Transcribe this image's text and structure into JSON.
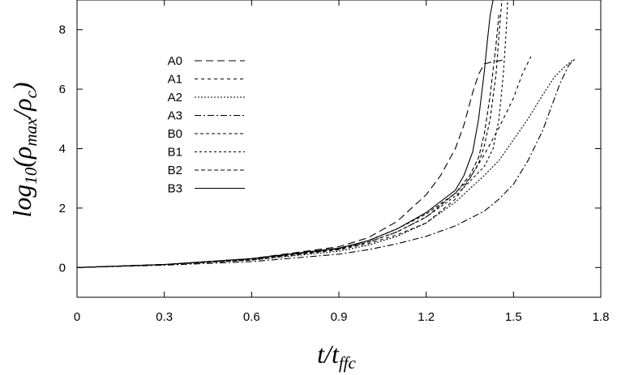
{
  "chart_data": {
    "type": "line",
    "title": "",
    "xlabel": "t/t_ffc",
    "ylabel": "log10(ρmax/ρc)",
    "xlabel_parts": {
      "main": "t/t",
      "sub": "ffc"
    },
    "ylabel_parts": {
      "pre": "log",
      "sub1": "10",
      "mid": "(ρ",
      "sub2": "max",
      "slash": "/ρ",
      "sub3": "c",
      "post": ")"
    },
    "xlim": [
      0,
      1.8
    ],
    "ylim": [
      -1,
      9
    ],
    "xticks": [
      0,
      0.3,
      0.6,
      0.9,
      1.2,
      1.5,
      1.8
    ],
    "xtick_labels": [
      "0",
      "0.3",
      "0.6",
      "0.9",
      "1.2",
      "1.5",
      "1.8"
    ],
    "yticks": [
      0,
      2,
      4,
      6,
      8
    ],
    "ytick_labels": [
      "0",
      "2",
      "4",
      "6",
      "8"
    ],
    "legend_position": "top-left",
    "grid": false,
    "series": [
      {
        "name": "A0",
        "dash": "9,5",
        "x": [
          0,
          0.3,
          0.6,
          0.9,
          1.0,
          1.1,
          1.2,
          1.25,
          1.3,
          1.33,
          1.36,
          1.38,
          1.4,
          1.42,
          1.45,
          1.47
        ],
        "y": [
          0,
          0.1,
          0.3,
          0.7,
          1.0,
          1.55,
          2.45,
          3.1,
          4.0,
          4.8,
          5.9,
          6.5,
          6.85,
          6.9,
          6.95,
          7.0
        ]
      },
      {
        "name": "A1",
        "dash": "4,4",
        "x": [
          0,
          0.3,
          0.6,
          0.9,
          1.0,
          1.1,
          1.2,
          1.3,
          1.35,
          1.4,
          1.45,
          1.5,
          1.53,
          1.56
        ],
        "y": [
          0,
          0.1,
          0.25,
          0.6,
          0.8,
          1.1,
          1.5,
          2.3,
          3.0,
          3.8,
          4.7,
          5.7,
          6.5,
          7.1
        ]
      },
      {
        "name": "A2",
        "dash": "2,2",
        "x": [
          0,
          0.3,
          0.6,
          0.9,
          1.0,
          1.1,
          1.2,
          1.3,
          1.4,
          1.45,
          1.5,
          1.55,
          1.6,
          1.64,
          1.67,
          1.7,
          1.71
        ],
        "y": [
          0,
          0.1,
          0.25,
          0.55,
          0.75,
          1.05,
          1.5,
          2.2,
          3.1,
          3.6,
          4.3,
          5.0,
          5.8,
          6.4,
          6.7,
          6.95,
          7.0
        ]
      },
      {
        "name": "A3",
        "dash": "8,3,2,3",
        "x": [
          0,
          0.3,
          0.6,
          0.9,
          1.0,
          1.1,
          1.2,
          1.3,
          1.4,
          1.45,
          1.5,
          1.55,
          1.6,
          1.63,
          1.66,
          1.69,
          1.71
        ],
        "y": [
          0,
          0.08,
          0.2,
          0.45,
          0.6,
          0.8,
          1.05,
          1.4,
          1.9,
          2.3,
          2.8,
          3.6,
          4.6,
          5.4,
          6.2,
          6.8,
          7.0
        ]
      },
      {
        "name": "B0",
        "dash": "4,3",
        "x": [
          0,
          0.3,
          0.6,
          0.9,
          1.0,
          1.1,
          1.2,
          1.3,
          1.35,
          1.38,
          1.4,
          1.42,
          1.44,
          1.45,
          1.46
        ],
        "y": [
          0,
          0.1,
          0.3,
          0.65,
          0.9,
          1.3,
          1.8,
          2.5,
          3.0,
          3.5,
          4.1,
          5.0,
          6.5,
          7.8,
          9.0
        ]
      },
      {
        "name": "B1",
        "dash": "3,3",
        "x": [
          0,
          0.3,
          0.6,
          0.9,
          1.0,
          1.1,
          1.2,
          1.3,
          1.35,
          1.4,
          1.43,
          1.45,
          1.465,
          1.475,
          1.48
        ],
        "y": [
          0,
          0.1,
          0.28,
          0.62,
          0.85,
          1.2,
          1.7,
          2.4,
          2.9,
          3.4,
          4.0,
          5.0,
          6.5,
          8.0,
          9.0
        ]
      },
      {
        "name": "B2",
        "dash": "5,3",
        "x": [
          0,
          0.3,
          0.6,
          0.9,
          1.0,
          1.1,
          1.2,
          1.3,
          1.35,
          1.38,
          1.4,
          1.42,
          1.44,
          1.45
        ],
        "y": [
          0,
          0.1,
          0.28,
          0.62,
          0.85,
          1.2,
          1.7,
          2.5,
          3.1,
          3.7,
          4.5,
          5.8,
          7.5,
          8.5
        ]
      },
      {
        "name": "B3",
        "dash": "",
        "x": [
          0,
          0.3,
          0.6,
          0.9,
          1.0,
          1.1,
          1.2,
          1.3,
          1.33,
          1.36,
          1.38,
          1.4,
          1.41,
          1.42,
          1.43
        ],
        "y": [
          0,
          0.1,
          0.3,
          0.65,
          0.9,
          1.3,
          1.85,
          2.6,
          3.1,
          3.9,
          5.0,
          6.6,
          7.6,
          8.5,
          9.0
        ]
      }
    ]
  }
}
